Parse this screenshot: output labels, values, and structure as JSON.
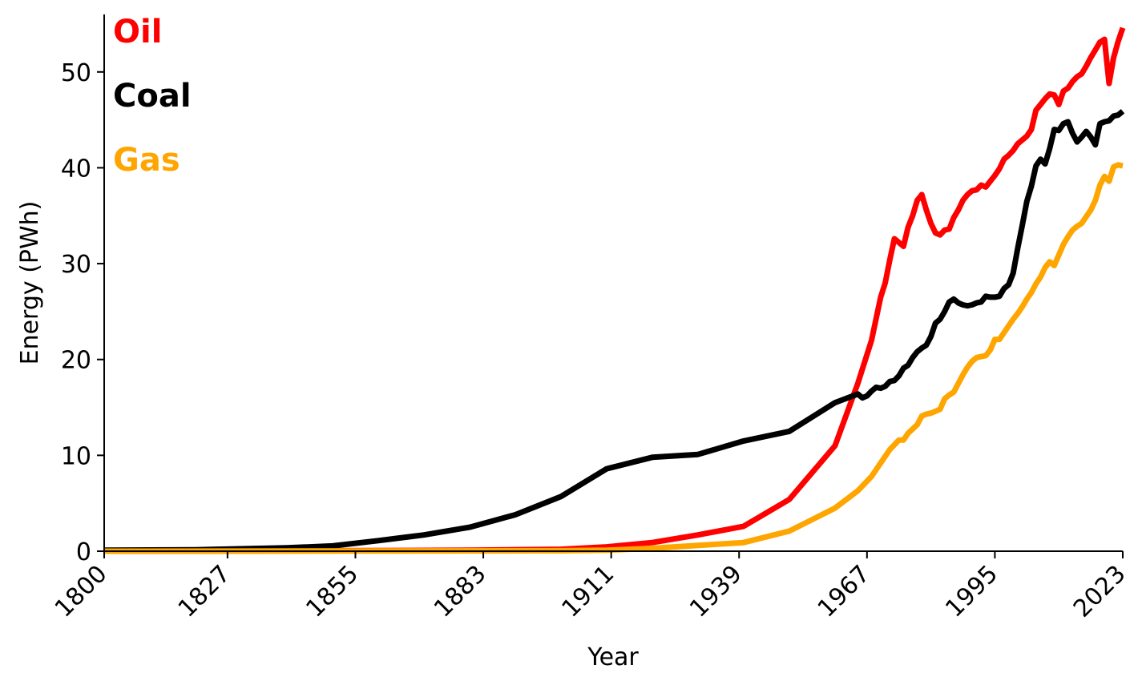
{
  "chart_data": {
    "type": "line",
    "xlabel": "Year",
    "ylabel": "Energy (PWh)",
    "xlim": [
      1800,
      2023
    ],
    "ylim": [
      0,
      56
    ],
    "x_ticks": [
      "1800",
      "1827",
      "1855",
      "1883",
      "1911",
      "1939",
      "1967",
      "1995",
      "2023"
    ],
    "y_ticks": [
      "0",
      "10",
      "20",
      "30",
      "40",
      "50"
    ],
    "grid": false,
    "legend": "top-left",
    "series": [
      {
        "name": "Oil",
        "color": "#ff0000",
        "points": [
          [
            1800,
            0
          ],
          [
            1850,
            0.05
          ],
          [
            1880,
            0.1
          ],
          [
            1900,
            0.2
          ],
          [
            1910,
            0.45
          ],
          [
            1920,
            0.9
          ],
          [
            1930,
            1.7
          ],
          [
            1940,
            2.6
          ],
          [
            1950,
            5.4
          ],
          [
            1960,
            11.0
          ],
          [
            1965,
            17.5
          ],
          [
            1968,
            22
          ],
          [
            1970,
            26.5
          ],
          [
            1971,
            28
          ],
          [
            1972,
            30.4
          ],
          [
            1973,
            32.6
          ],
          [
            1974,
            32.2
          ],
          [
            1975,
            31.8
          ],
          [
            1976,
            33.8
          ],
          [
            1977,
            35.0
          ],
          [
            1978,
            36.6
          ],
          [
            1979,
            37.2
          ],
          [
            1980,
            35.6
          ],
          [
            1981,
            34.2
          ],
          [
            1982,
            33.2
          ],
          [
            1983,
            33.0
          ],
          [
            1984,
            33.5
          ],
          [
            1985,
            33.6
          ],
          [
            1986,
            34.8
          ],
          [
            1987,
            35.6
          ],
          [
            1988,
            36.6
          ],
          [
            1989,
            37.2
          ],
          [
            1990,
            37.6
          ],
          [
            1991,
            37.7
          ],
          [
            1992,
            38.2
          ],
          [
            1993,
            38.0
          ],
          [
            1994,
            38.6
          ],
          [
            1995,
            39.2
          ],
          [
            1996,
            39.9
          ],
          [
            1997,
            40.9
          ],
          [
            1998,
            41.3
          ],
          [
            1999,
            41.8
          ],
          [
            2000,
            42.5
          ],
          [
            2001,
            42.9
          ],
          [
            2002,
            43.3
          ],
          [
            2003,
            44.0
          ],
          [
            2004,
            46.0
          ],
          [
            2005,
            46.6
          ],
          [
            2006,
            47.2
          ],
          [
            2007,
            47.7
          ],
          [
            2008,
            47.6
          ],
          [
            2009,
            46.6
          ],
          [
            2010,
            48.0
          ],
          [
            2011,
            48.3
          ],
          [
            2012,
            49.0
          ],
          [
            2013,
            49.5
          ],
          [
            2014,
            49.8
          ],
          [
            2015,
            50.6
          ],
          [
            2016,
            51.5
          ],
          [
            2017,
            52.3
          ],
          [
            2018,
            53.1
          ],
          [
            2019,
            53.4
          ],
          [
            2020,
            48.8
          ],
          [
            2021,
            51.5
          ],
          [
            2022,
            53.2
          ],
          [
            2023,
            54.6
          ]
        ]
      },
      {
        "name": "Coal",
        "color": "#000000",
        "points": [
          [
            1800,
            0.1
          ],
          [
            1820,
            0.15
          ],
          [
            1840,
            0.35
          ],
          [
            1850,
            0.55
          ],
          [
            1860,
            1.1
          ],
          [
            1870,
            1.7
          ],
          [
            1880,
            2.5
          ],
          [
            1890,
            3.8
          ],
          [
            1900,
            5.7
          ],
          [
            1910,
            8.6
          ],
          [
            1920,
            9.8
          ],
          [
            1930,
            10.1
          ],
          [
            1940,
            11.5
          ],
          [
            1950,
            12.5
          ],
          [
            1960,
            15.5
          ],
          [
            1965,
            16.4
          ],
          [
            1966,
            16.0
          ],
          [
            1967,
            16.2
          ],
          [
            1968,
            16.7
          ],
          [
            1969,
            17.1
          ],
          [
            1970,
            17.0
          ],
          [
            1971,
            17.2
          ],
          [
            1972,
            17.7
          ],
          [
            1973,
            17.8
          ],
          [
            1974,
            18.3
          ],
          [
            1975,
            19.1
          ],
          [
            1976,
            19.4
          ],
          [
            1977,
            20.2
          ],
          [
            1978,
            20.8
          ],
          [
            1979,
            21.2
          ],
          [
            1980,
            21.5
          ],
          [
            1981,
            22.4
          ],
          [
            1982,
            23.8
          ],
          [
            1983,
            24.2
          ],
          [
            1984,
            25.0
          ],
          [
            1985,
            26.0
          ],
          [
            1986,
            26.3
          ],
          [
            1987,
            25.9
          ],
          [
            1988,
            25.7
          ],
          [
            1989,
            25.6
          ],
          [
            1990,
            25.7
          ],
          [
            1991,
            25.9
          ],
          [
            1992,
            26.0
          ],
          [
            1993,
            26.6
          ],
          [
            1994,
            26.5
          ],
          [
            1995,
            26.5
          ],
          [
            1996,
            26.6
          ],
          [
            1997,
            27.4
          ],
          [
            1998,
            27.8
          ],
          [
            1999,
            29.0
          ],
          [
            2000,
            31.6
          ],
          [
            2001,
            34.0
          ],
          [
            2002,
            36.5
          ],
          [
            2003,
            38.1
          ],
          [
            2004,
            40.2
          ],
          [
            2005,
            40.9
          ],
          [
            2006,
            40.4
          ],
          [
            2007,
            42.0
          ],
          [
            2008,
            44.0
          ],
          [
            2009,
            43.9
          ],
          [
            2010,
            44.6
          ],
          [
            2011,
            44.8
          ],
          [
            2012,
            43.6
          ],
          [
            2013,
            42.7
          ],
          [
            2014,
            43.2
          ],
          [
            2015,
            43.8
          ],
          [
            2016,
            43.2
          ],
          [
            2017,
            42.4
          ],
          [
            2018,
            44.6
          ],
          [
            2019,
            44.8
          ],
          [
            2020,
            44.9
          ],
          [
            2021,
            45.4
          ],
          [
            2022,
            45.5
          ],
          [
            2023,
            45.9
          ]
        ]
      },
      {
        "name": "Gas",
        "color": "#ffa500",
        "points": [
          [
            1800,
            0
          ],
          [
            1900,
            0.05
          ],
          [
            1910,
            0.1
          ],
          [
            1920,
            0.3
          ],
          [
            1930,
            0.6
          ],
          [
            1940,
            0.9
          ],
          [
            1950,
            2.1
          ],
          [
            1960,
            4.5
          ],
          [
            1965,
            6.3
          ],
          [
            1968,
            7.8
          ],
          [
            1970,
            9.2
          ],
          [
            1972,
            10.6
          ],
          [
            1974,
            11.6
          ],
          [
            1975,
            11.6
          ],
          [
            1976,
            12.3
          ],
          [
            1978,
            13.2
          ],
          [
            1979,
            14.1
          ],
          [
            1980,
            14.3
          ],
          [
            1981,
            14.4
          ],
          [
            1982,
            14.6
          ],
          [
            1983,
            14.8
          ],
          [
            1984,
            15.9
          ],
          [
            1985,
            16.3
          ],
          [
            1986,
            16.6
          ],
          [
            1987,
            17.5
          ],
          [
            1988,
            18.4
          ],
          [
            1989,
            19.2
          ],
          [
            1990,
            19.8
          ],
          [
            1991,
            20.2
          ],
          [
            1992,
            20.3
          ],
          [
            1993,
            20.4
          ],
          [
            1994,
            21.0
          ],
          [
            1995,
            22.1
          ],
          [
            1996,
            22.1
          ],
          [
            1997,
            22.8
          ],
          [
            1998,
            23.5
          ],
          [
            1999,
            24.2
          ],
          [
            2000,
            24.8
          ],
          [
            2001,
            25.5
          ],
          [
            2002,
            26.3
          ],
          [
            2003,
            27.0
          ],
          [
            2004,
            27.9
          ],
          [
            2005,
            28.6
          ],
          [
            2006,
            29.6
          ],
          [
            2007,
            30.2
          ],
          [
            2008,
            29.8
          ],
          [
            2009,
            30.9
          ],
          [
            2010,
            32.0
          ],
          [
            2011,
            32.8
          ],
          [
            2012,
            33.5
          ],
          [
            2013,
            33.9
          ],
          [
            2014,
            34.2
          ],
          [
            2015,
            34.9
          ],
          [
            2016,
            35.6
          ],
          [
            2017,
            36.6
          ],
          [
            2018,
            38.2
          ],
          [
            2019,
            39.1
          ],
          [
            2020,
            38.6
          ],
          [
            2021,
            40.1
          ],
          [
            2022,
            40.3
          ],
          [
            2023,
            40.2
          ]
        ]
      }
    ]
  }
}
